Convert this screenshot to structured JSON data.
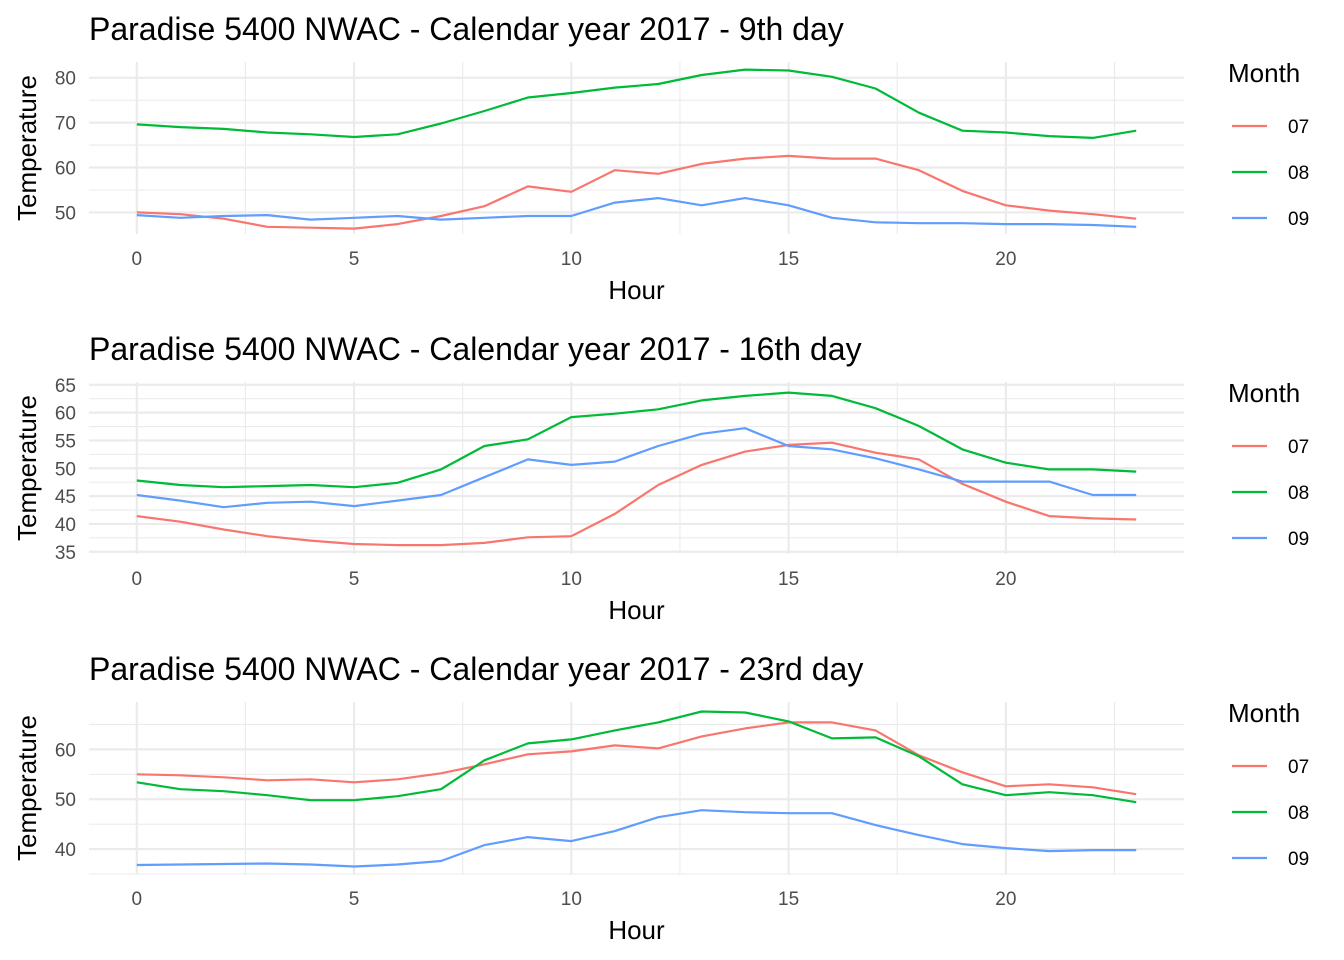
{
  "chart_data": [
    {
      "type": "line",
      "title": "Paradise 5400 NWAC - Calendar year 2017  - 9th day",
      "xlabel": "Hour",
      "ylabel": "Temperature",
      "xlim": [
        -1.1,
        24.1
      ],
      "ylim": [
        45.2,
        83.5
      ],
      "x_ticks": [
        0,
        5,
        10,
        15,
        20
      ],
      "y_ticks": [
        50,
        60,
        70,
        80
      ],
      "legend": {
        "title": "Month",
        "position": "right"
      },
      "x": [
        0,
        1,
        2,
        3,
        4,
        5,
        6,
        7,
        8,
        9,
        10,
        11,
        12,
        13,
        14,
        15,
        16,
        17,
        18,
        19,
        20,
        21,
        22,
        23
      ],
      "series": [
        {
          "name": "07",
          "color": "#F8766D",
          "values": [
            50.0,
            49.6,
            48.6,
            46.8,
            46.6,
            46.4,
            47.4,
            49.2,
            51.4,
            55.8,
            54.6,
            59.4,
            58.6,
            60.8,
            62.0,
            62.6,
            62.0,
            62.0,
            59.4,
            54.8,
            51.6,
            50.4,
            49.6,
            48.6
          ]
        },
        {
          "name": "08",
          "color": "#00BA38",
          "values": [
            69.6,
            69.0,
            68.6,
            67.8,
            67.4,
            66.8,
            67.4,
            69.8,
            72.6,
            75.6,
            76.6,
            77.8,
            78.6,
            80.6,
            81.8,
            81.6,
            80.2,
            77.6,
            72.2,
            68.2,
            67.8,
            67.0,
            66.6,
            68.2
          ]
        },
        {
          "name": "09",
          "color": "#619CFF",
          "values": [
            49.4,
            48.8,
            49.2,
            49.4,
            48.4,
            48.8,
            49.2,
            48.4,
            48.8,
            49.2,
            49.2,
            52.2,
            53.2,
            51.6,
            53.2,
            51.6,
            48.8,
            47.8,
            47.6,
            47.6,
            47.4,
            47.4,
            47.2,
            46.8
          ]
        }
      ]
    },
    {
      "type": "line",
      "title": "Paradise 5400 NWAC - Calendar year 2017  - 16th day",
      "xlabel": "Hour",
      "ylabel": "Temperature",
      "xlim": [
        -1.1,
        24.1
      ],
      "ylim": [
        34.6,
        65.5
      ],
      "x_ticks": [
        0,
        5,
        10,
        15,
        20
      ],
      "y_ticks": [
        35,
        40,
        45,
        50,
        55,
        60,
        65
      ],
      "legend": {
        "title": "Month",
        "position": "right"
      },
      "x": [
        0,
        1,
        2,
        3,
        4,
        5,
        6,
        7,
        8,
        9,
        10,
        11,
        12,
        13,
        14,
        15,
        16,
        17,
        18,
        19,
        20,
        21,
        22,
        23
      ],
      "series": [
        {
          "name": "07",
          "color": "#F8766D",
          "values": [
            41.4,
            40.4,
            39.0,
            37.8,
            37.0,
            36.4,
            36.2,
            36.2,
            36.6,
            37.6,
            37.8,
            41.8,
            47.0,
            50.6,
            53.0,
            54.2,
            54.6,
            52.8,
            51.6,
            47.2,
            44.0,
            41.4,
            41.0,
            40.8
          ]
        },
        {
          "name": "08",
          "color": "#00BA38",
          "values": [
            47.8,
            47.0,
            46.6,
            46.8,
            47.0,
            46.6,
            47.4,
            49.8,
            54.0,
            55.2,
            59.2,
            59.8,
            60.6,
            62.2,
            63.0,
            63.6,
            63.0,
            60.8,
            57.6,
            53.4,
            51.0,
            49.8,
            49.8,
            49.4
          ]
        },
        {
          "name": "09",
          "color": "#619CFF",
          "values": [
            45.2,
            44.2,
            43.0,
            43.8,
            44.0,
            43.2,
            44.2,
            45.2,
            48.4,
            51.6,
            50.6,
            51.2,
            54.0,
            56.2,
            57.2,
            54.0,
            53.4,
            51.8,
            49.8,
            47.6,
            47.6,
            47.6,
            45.2,
            45.2
          ]
        }
      ]
    },
    {
      "type": "line",
      "title": "Paradise 5400 NWAC - Calendar year 2017  - 23rd day",
      "xlabel": "Hour",
      "ylabel": "Temperature",
      "xlim": [
        -1.1,
        24.1
      ],
      "ylim": [
        35.0,
        69.5
      ],
      "x_ticks": [
        0,
        5,
        10,
        15,
        20
      ],
      "y_ticks": [
        40,
        50,
        60
      ],
      "legend": {
        "title": "Month",
        "position": "right"
      },
      "x": [
        0,
        1,
        2,
        3,
        4,
        5,
        6,
        7,
        8,
        9,
        10,
        11,
        12,
        13,
        14,
        15,
        16,
        17,
        18,
        19,
        20,
        21,
        22,
        23
      ],
      "series": [
        {
          "name": "07",
          "color": "#F8766D",
          "values": [
            55.0,
            54.8,
            54.4,
            53.8,
            54.0,
            53.4,
            54.0,
            55.2,
            57.0,
            59.0,
            59.6,
            60.8,
            60.2,
            62.6,
            64.2,
            65.4,
            65.4,
            63.8,
            58.8,
            55.4,
            52.6,
            53.0,
            52.4,
            51.0
          ]
        },
        {
          "name": "08",
          "color": "#00BA38",
          "values": [
            53.4,
            52.0,
            51.6,
            50.8,
            49.8,
            49.8,
            50.6,
            52.0,
            57.8,
            61.2,
            62.0,
            63.8,
            65.4,
            67.6,
            67.4,
            65.6,
            62.2,
            62.4,
            58.6,
            53.0,
            50.8,
            51.4,
            50.8,
            49.4
          ]
        },
        {
          "name": "09",
          "color": "#619CFF",
          "values": [
            36.8,
            36.9,
            37.0,
            37.1,
            36.9,
            36.5,
            36.9,
            37.6,
            40.8,
            42.4,
            41.6,
            43.6,
            46.4,
            47.8,
            47.4,
            47.2,
            47.2,
            44.8,
            42.8,
            41.0,
            40.2,
            39.6,
            39.8,
            39.8
          ]
        }
      ]
    }
  ]
}
